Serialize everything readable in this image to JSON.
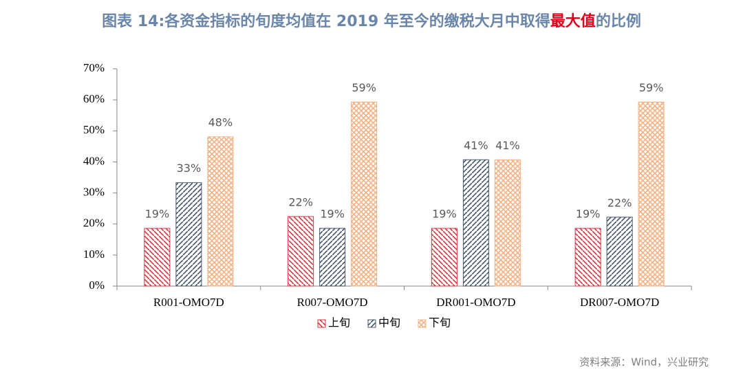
{
  "chart_data": {
    "type": "bar",
    "title": [
      "图表 14:各资金指标的旬度均值在 2019 年至今的缴税大月中取得",
      "最大值",
      "的比例"
    ],
    "title_color": "#6a86aa",
    "title_highlight_color": "#e0001b",
    "categories": [
      "R001-OMO7D",
      "R007-OMO7D",
      "DR001-OMO7D",
      "DR007-OMO7D"
    ],
    "series": [
      {
        "name": "上旬",
        "color": "#d9333f",
        "pattern": "backslash",
        "values": [
          18.6,
          22.4,
          18.6,
          18.6
        ],
        "value_labels": [
          "19%",
          "22%",
          "19%",
          "19%"
        ]
      },
      {
        "name": "中旬",
        "color": "#44546a",
        "pattern": "slash",
        "values": [
          33.3,
          18.6,
          40.7,
          22.2
        ],
        "value_labels": [
          "33%",
          "19%",
          "41%",
          "22%"
        ]
      },
      {
        "name": "下旬",
        "color": "#f4b183",
        "pattern": "cross",
        "values": [
          48.1,
          59.3,
          40.7,
          59.3
        ],
        "value_labels": [
          "48%",
          "59%",
          "41%",
          "59%"
        ]
      }
    ],
    "ylim": [
      0,
      70
    ],
    "yticks": [
      {
        "value": 0,
        "label": "0%"
      },
      {
        "value": 10,
        "label": "10%"
      },
      {
        "value": 20,
        "label": "20%"
      },
      {
        "value": 30,
        "label": "30%"
      },
      {
        "value": 40,
        "label": "40%"
      },
      {
        "value": 50,
        "label": "50%"
      },
      {
        "value": 60,
        "label": "60%"
      },
      {
        "value": 70,
        "label": "70%"
      }
    ],
    "legend": "bottom",
    "source": "资料来源：Wind，兴业研究"
  }
}
